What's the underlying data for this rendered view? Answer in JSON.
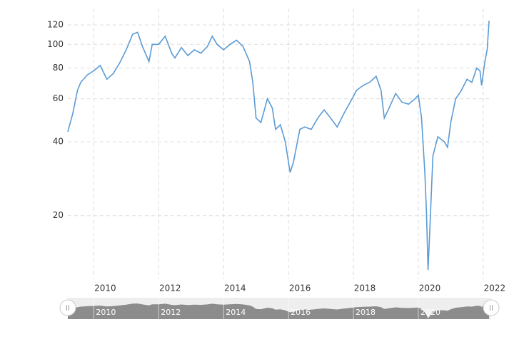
{
  "chart_data": {
    "type": "line",
    "log_scale": true,
    "grid": true,
    "x": [
      2009.2,
      2009.35,
      2009.5,
      2009.6,
      2009.8,
      2010.0,
      2010.2,
      2010.4,
      2010.6,
      2010.8,
      2011.0,
      2011.2,
      2011.35,
      2011.5,
      2011.7,
      2011.8,
      2012.0,
      2012.2,
      2012.4,
      2012.5,
      2012.7,
      2012.9,
      2013.1,
      2013.3,
      2013.5,
      2013.65,
      2013.8,
      2014.0,
      2014.2,
      2014.4,
      2014.6,
      2014.8,
      2014.9,
      2015.0,
      2015.15,
      2015.35,
      2015.5,
      2015.6,
      2015.75,
      2015.9,
      2016.05,
      2016.15,
      2016.35,
      2016.5,
      2016.7,
      2016.9,
      2017.1,
      2017.3,
      2017.5,
      2017.7,
      2017.9,
      2018.1,
      2018.3,
      2018.5,
      2018.7,
      2018.85,
      2018.95,
      2019.1,
      2019.3,
      2019.5,
      2019.7,
      2019.9,
      2020.0,
      2020.1,
      2020.2,
      2020.25,
      2020.3,
      2020.35,
      2020.45,
      2020.6,
      2020.8,
      2020.9,
      2021.0,
      2021.15,
      2021.3,
      2021.5,
      2021.65,
      2021.8,
      2021.9,
      2021.95,
      2022.05,
      2022.12,
      2022.18
    ],
    "series": [
      {
        "color": "#5b9bd5",
        "values": [
          44,
          52,
          65,
          70,
          75,
          78,
          82,
          72,
          76,
          84,
          95,
          110,
          112,
          98,
          85,
          100,
          100,
          108,
          92,
          88,
          97,
          90,
          95,
          92,
          98,
          108,
          100,
          95,
          100,
          104,
          98,
          85,
          70,
          50,
          48,
          60,
          55,
          45,
          47,
          40,
          30,
          33,
          45,
          46,
          45,
          50,
          54,
          50,
          46,
          52,
          58,
          65,
          68,
          70,
          74,
          65,
          50,
          55,
          63,
          58,
          57,
          60,
          62,
          50,
          30,
          21,
          12,
          17,
          35,
          42,
          40,
          38,
          48,
          60,
          64,
          72,
          70,
          80,
          78,
          68,
          85,
          95,
          125
        ]
      }
    ],
    "xlim": [
      2009.2,
      2022.2
    ],
    "xticks": [
      2010,
      2012,
      2014,
      2016,
      2018,
      2020,
      2022
    ],
    "ylim": [
      11,
      140
    ],
    "yticks": [
      20,
      40,
      60,
      80,
      100,
      120
    ]
  }
}
